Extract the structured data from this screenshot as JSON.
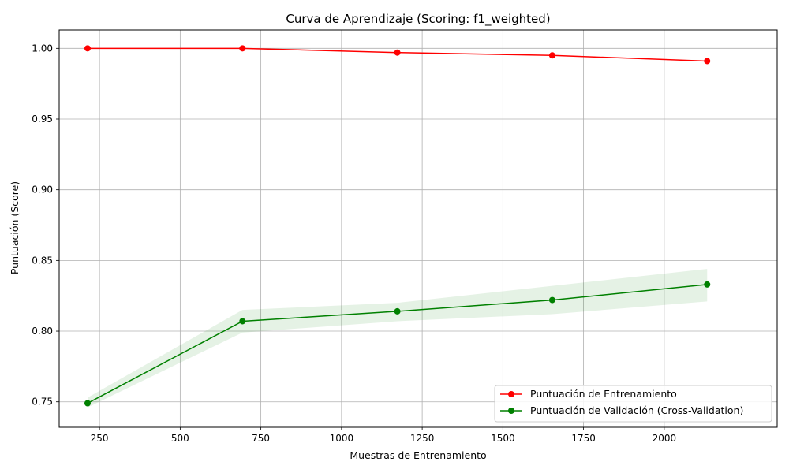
{
  "chart_data": {
    "type": "line",
    "title": "Curva de Aprendizaje (Scoring: f1_weighted)",
    "xlabel": "Muestras de Entrenamiento",
    "ylabel": "Puntuación (Score)",
    "xlim": [
      125,
      2350
    ],
    "ylim": [
      0.732,
      1.013
    ],
    "xticks": [
      250,
      500,
      750,
      1000,
      1250,
      1500,
      1750,
      2000
    ],
    "xtick_labels": [
      "250",
      "500",
      "750",
      "1000",
      "1250",
      "1500",
      "1750",
      "2000"
    ],
    "yticks": [
      0.75,
      0.8,
      0.85,
      0.9,
      0.95,
      1.0
    ],
    "ytick_labels": [
      "0.75",
      "0.80",
      "0.85",
      "0.90",
      "0.95",
      "1.00"
    ],
    "grid": true,
    "legend_position": "lower-right",
    "x": [
      213,
      693,
      1173,
      1653,
      2133
    ],
    "series": [
      {
        "name": "Puntuación de Entrenamiento",
        "color": "#ff0000",
        "marker": "circle",
        "values": [
          1.0,
          1.0,
          0.997,
          0.995,
          0.991
        ],
        "band_low": [
          1.0,
          1.0,
          0.997,
          0.995,
          0.991
        ],
        "band_high": [
          1.0,
          1.0,
          0.997,
          0.995,
          0.991
        ]
      },
      {
        "name": "Puntuación de Validación (Cross-Validation)",
        "color": "#008000",
        "marker": "circle",
        "band_color": "#008000",
        "values": [
          0.749,
          0.807,
          0.814,
          0.822,
          0.833
        ],
        "band_low": [
          0.746,
          0.799,
          0.807,
          0.812,
          0.821
        ],
        "band_high": [
          0.753,
          0.815,
          0.82,
          0.832,
          0.844
        ]
      }
    ]
  }
}
